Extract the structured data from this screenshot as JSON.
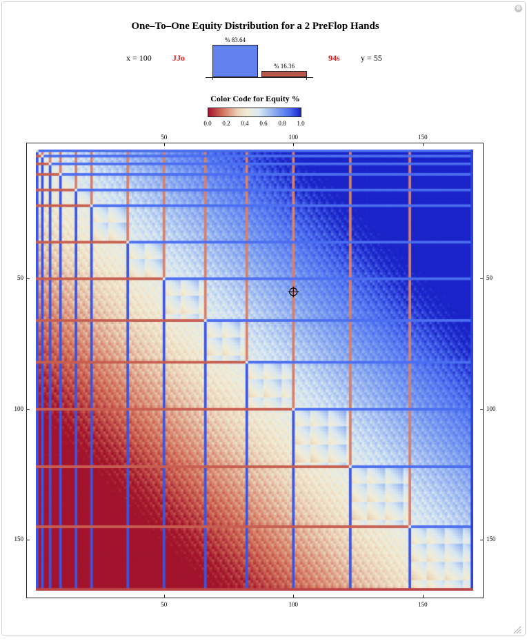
{
  "window": {
    "close_glyph": "⊗"
  },
  "header": {
    "title": "One–To–One Equity Distribution for a 2 PreFlop Hands",
    "x_label": "x = 100",
    "y_label": "y = 55",
    "hand_x": "JJo",
    "hand_y": "94s",
    "hand_color": "#e01818"
  },
  "equity_bars": [
    {
      "label": "% 83.64",
      "value": 83.64,
      "color": "#6081ee"
    },
    {
      "label": "% 16.36",
      "value": 16.36,
      "color": "#b8584c"
    }
  ],
  "legend": {
    "title": "Color Code for Equity %",
    "ticks": [
      "0.0",
      "0.2",
      "0.4",
      "0.6",
      "0.8",
      "1.0"
    ],
    "colors": [
      "#a2142c",
      "#ead2b8",
      "#f2ecd4",
      "#7c9ef0",
      "#1a24c8"
    ]
  },
  "chart_data": {
    "type": "heatmap",
    "n": 169,
    "xlim": [
      1,
      169
    ],
    "ylim": [
      1,
      169
    ],
    "x_ticks": [
      "50",
      "100",
      "150"
    ],
    "y_ticks": [
      "50",
      "100",
      "150"
    ],
    "x_tick_values": [
      50,
      100,
      150
    ],
    "y_tick_values": [
      50,
      100,
      150
    ],
    "y_reversed": true,
    "value_range": [
      0,
      1
    ],
    "marker": {
      "x": 100,
      "y": 55
    }
  }
}
